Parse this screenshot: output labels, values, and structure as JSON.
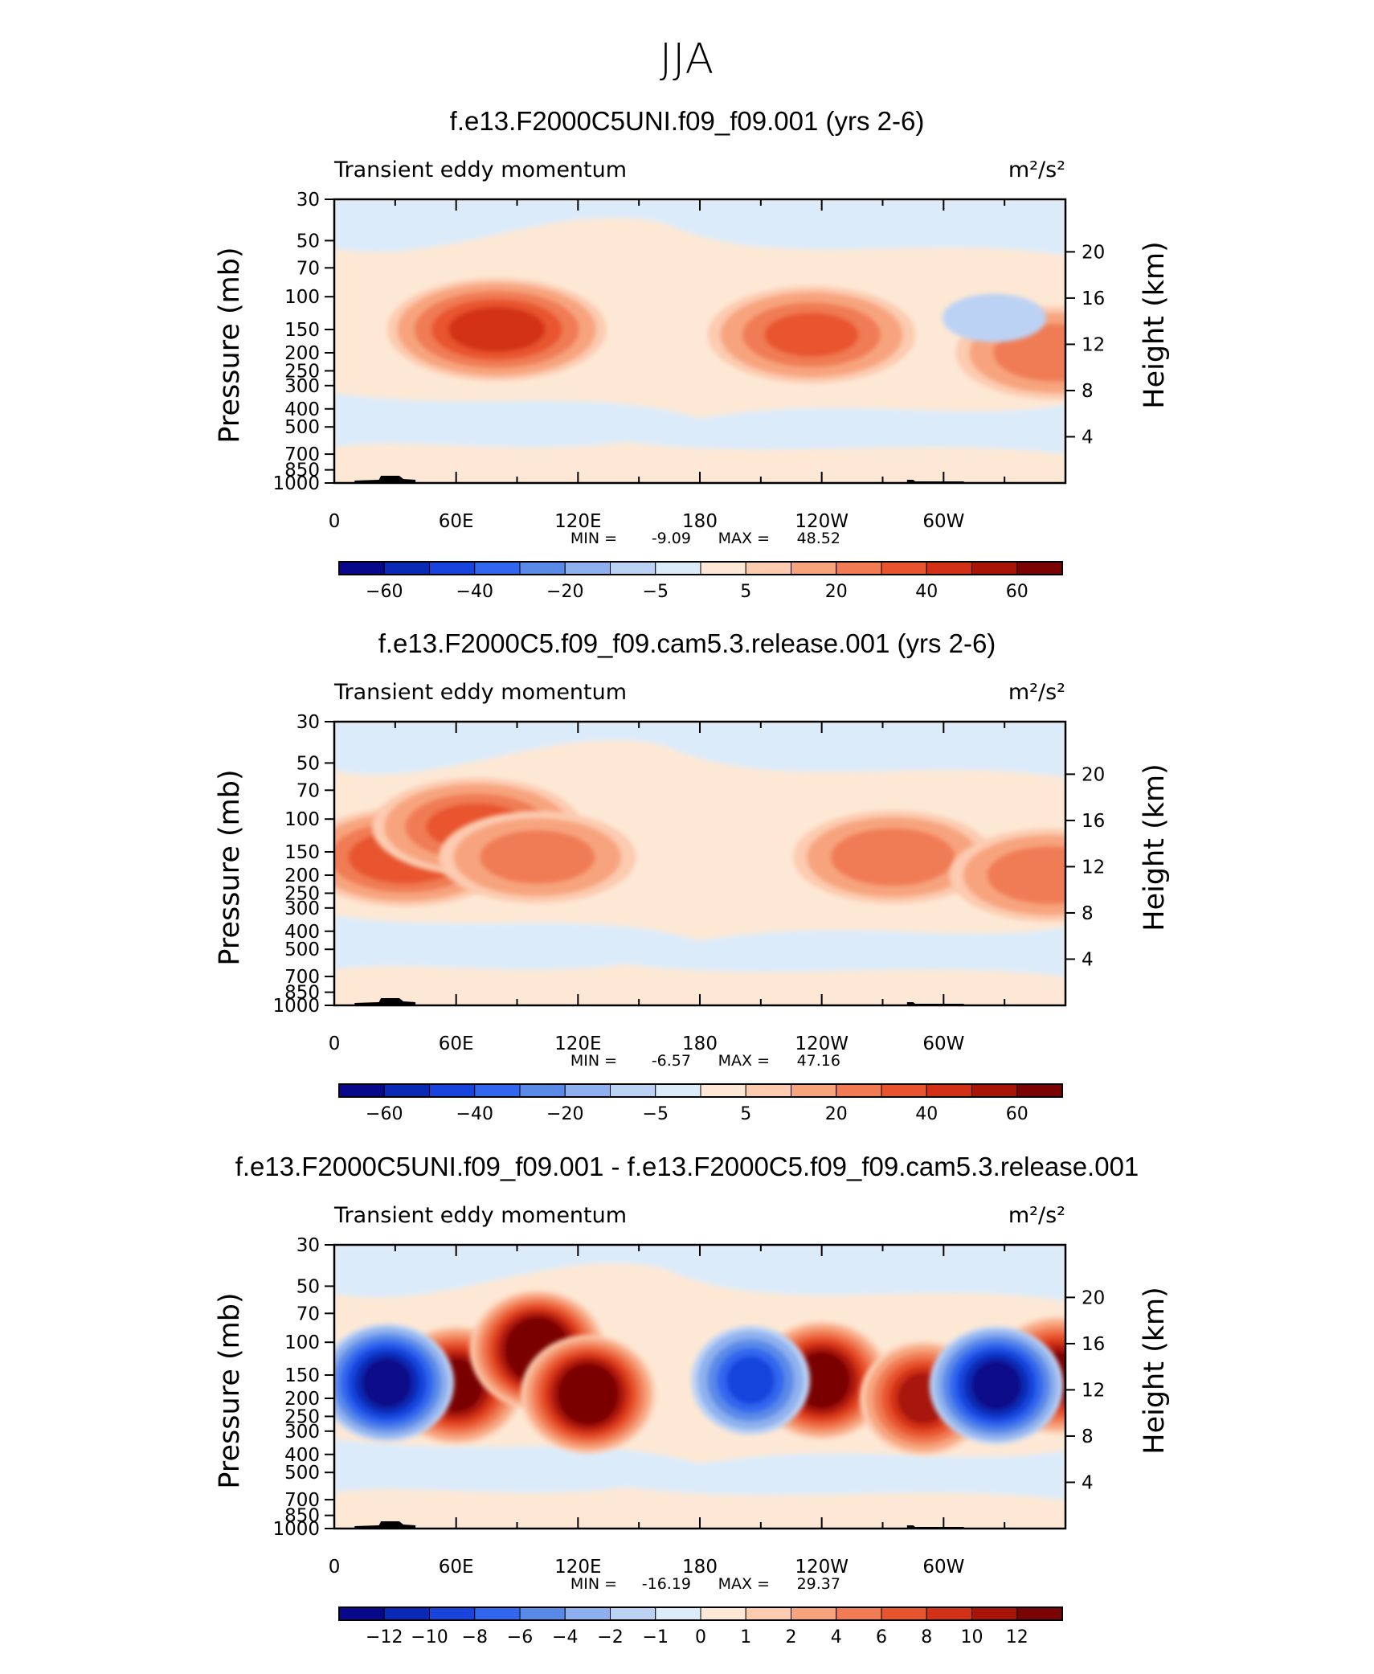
{
  "page": {
    "title": "JJA"
  },
  "panels": [
    {
      "title": "f.e13.F2000C5UNI.f09_f09.001 (yrs 2-6)",
      "left_label": "Transient eddy momentum",
      "units": "m²/s²",
      "stats": {
        "min_label": "MIN =",
        "min": "-9.09",
        "max_label": "MAX =",
        "max": "48.52"
      },
      "colorbar": {
        "colors": [
          "#08088a",
          "#0a2ab5",
          "#1844dd",
          "#3366ee",
          "#5a8ae8",
          "#8eb0ee",
          "#bcd2f4",
          "#dcebfa",
          "#fde8d5",
          "#fccbb0",
          "#f7a47e",
          "#f07b54",
          "#e8542e",
          "#d33018",
          "#a81508",
          "#7a0404"
        ],
        "tick_labels": [
          "-60",
          "-40",
          "-20",
          "-5",
          "5",
          "20",
          "40",
          "60"
        ]
      }
    },
    {
      "title": "f.e13.F2000C5.f09_f09.cam5.3.release.001 (yrs 2-6)",
      "left_label": "Transient eddy momentum",
      "units": "m²/s²",
      "stats": {
        "min_label": "MIN =",
        "min": "-6.57",
        "max_label": "MAX =",
        "max": "47.16"
      },
      "colorbar": {
        "colors": [
          "#08088a",
          "#0a2ab5",
          "#1844dd",
          "#3366ee",
          "#5a8ae8",
          "#8eb0ee",
          "#bcd2f4",
          "#dcebfa",
          "#fde8d5",
          "#fccbb0",
          "#f7a47e",
          "#f07b54",
          "#e8542e",
          "#d33018",
          "#a81508",
          "#7a0404"
        ],
        "tick_labels": [
          "-60",
          "-40",
          "-20",
          "-5",
          "5",
          "20",
          "40",
          "60"
        ]
      }
    },
    {
      "title": "f.e13.F2000C5UNI.f09_f09.001 - f.e13.F2000C5.f09_f09.cam5.3.release.001",
      "left_label": "Transient eddy momentum",
      "units": "m²/s²",
      "stats": {
        "min_label": "MIN =",
        "min": "-16.19",
        "max_label": "MAX =",
        "max": "29.37"
      },
      "colorbar": {
        "colors": [
          "#08088a",
          "#0a2ab5",
          "#1844dd",
          "#3366ee",
          "#5a8ae8",
          "#8eb0ee",
          "#bcd2f4",
          "#dcebfa",
          "#fde8d5",
          "#fccbb0",
          "#f7a47e",
          "#f07b54",
          "#e8542e",
          "#d33018",
          "#a81508",
          "#7a0404"
        ],
        "tick_labels": [
          "-12",
          "-10",
          "-8",
          "-6",
          "-4",
          "-2",
          "-1",
          "0",
          "1",
          "2",
          "4",
          "6",
          "8",
          "10",
          "12"
        ]
      }
    }
  ],
  "axes": {
    "x_tick_labels": [
      "0",
      "60E",
      "120E",
      "180",
      "120W",
      "60W"
    ],
    "y_left_label": "Pressure (mb)",
    "y_left_ticks": [
      "30",
      "50",
      "70",
      "100",
      "150",
      "200",
      "250",
      "300",
      "400",
      "500",
      "700",
      "850",
      "1000"
    ],
    "y_right_label": "Height (km)",
    "y_right_ticks": [
      "20",
      "16",
      "12",
      "8",
      "4"
    ]
  },
  "chart_data": [
    {
      "type": "heatmap",
      "title": "f.e13.F2000C5UNI.f09_f09.001 (yrs 2-6)",
      "subtitle": "Transient eddy momentum",
      "units": "m²/s²",
      "xlabel": "",
      "ylabel": "Pressure (mb)",
      "ylabel_right": "Height (km)",
      "x_range_deg_east": [
        0,
        360
      ],
      "y_range_mb": [
        1000,
        30
      ],
      "y_scale": "log",
      "contour_levels": [
        -60,
        -50,
        -40,
        -30,
        -20,
        -10,
        -5,
        0,
        5,
        10,
        20,
        30,
        40,
        50,
        60
      ],
      "min": -9.09,
      "max": 48.52,
      "features": [
        {
          "sign": "positive",
          "lon": 80,
          "p": 150,
          "value": 45
        },
        {
          "sign": "positive",
          "lon": 235,
          "p": 160,
          "value": 33
        },
        {
          "sign": "positive",
          "lon": 355,
          "p": 200,
          "value": 30
        },
        {
          "sign": "negative",
          "lon": 325,
          "p": 130,
          "value": -6
        }
      ]
    },
    {
      "type": "heatmap",
      "title": "f.e13.F2000C5.f09_f09.cam5.3.release.001 (yrs 2-6)",
      "subtitle": "Transient eddy momentum",
      "units": "m²/s²",
      "xlabel": "",
      "ylabel": "Pressure (mb)",
      "ylabel_right": "Height (km)",
      "x_range_deg_east": [
        0,
        360
      ],
      "y_range_mb": [
        1000,
        30
      ],
      "y_scale": "log",
      "contour_levels": [
        -60,
        -50,
        -40,
        -30,
        -20,
        -10,
        -5,
        0,
        5,
        10,
        20,
        30,
        40,
        50,
        60
      ],
      "min": -6.57,
      "max": 47.16,
      "features": [
        {
          "sign": "positive",
          "lon": 35,
          "p": 160,
          "value": 40
        },
        {
          "sign": "positive",
          "lon": 70,
          "p": 110,
          "value": 35
        },
        {
          "sign": "positive",
          "lon": 100,
          "p": 160,
          "value": 27
        },
        {
          "sign": "positive",
          "lon": 275,
          "p": 160,
          "value": 30
        },
        {
          "sign": "positive",
          "lon": 352,
          "p": 200,
          "value": 30
        }
      ]
    },
    {
      "type": "heatmap",
      "title": "f.e13.F2000C5UNI.f09_f09.001 - f.e13.F2000C5.f09_f09.cam5.3.release.001",
      "subtitle": "Transient eddy momentum",
      "units": "m²/s²",
      "xlabel": "",
      "ylabel": "Pressure (mb)",
      "ylabel_right": "Height (km)",
      "x_range_deg_east": [
        0,
        360
      ],
      "y_range_mb": [
        1000,
        30
      ],
      "y_scale": "log",
      "contour_levels": [
        -12,
        -10,
        -8,
        -6,
        -4,
        -2,
        -1,
        0,
        1,
        2,
        4,
        6,
        8,
        10,
        12
      ],
      "min": -16.19,
      "max": 29.37,
      "features": [
        {
          "sign": "positive",
          "lon": 60,
          "p": 170,
          "value": 15
        },
        {
          "sign": "positive",
          "lon": 100,
          "p": 110,
          "value": 20
        },
        {
          "sign": "positive",
          "lon": 125,
          "p": 190,
          "value": 18
        },
        {
          "sign": "positive",
          "lon": 240,
          "p": 160,
          "value": 16
        },
        {
          "sign": "positive",
          "lon": 290,
          "p": 200,
          "value": 12
        },
        {
          "sign": "positive",
          "lon": 356,
          "p": 150,
          "value": 13
        },
        {
          "sign": "negative",
          "lon": 26,
          "p": 165,
          "value": -14
        },
        {
          "sign": "negative",
          "lon": 205,
          "p": 160,
          "value": -9
        },
        {
          "sign": "negative",
          "lon": 326,
          "p": 170,
          "value": -14
        }
      ]
    }
  ]
}
